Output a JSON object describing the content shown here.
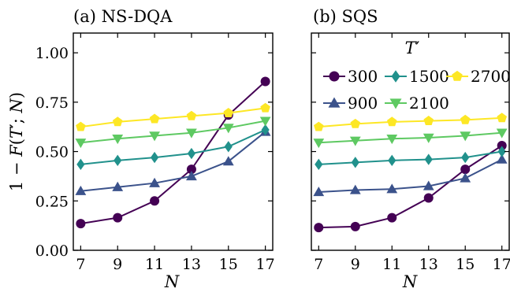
{
  "figure": {
    "shared_ylabel_parts": {
      "a": "1 − ",
      "b": "F",
      "c": "(",
      "d": "T",
      "e": "′; ",
      "f": "N",
      "g": ")"
    },
    "legend_title": {
      "main": "T",
      "prime": "′"
    }
  },
  "chart_data": [
    {
      "type": "line",
      "title": "(a) NS-DQA",
      "xlabel": "N",
      "ylabel": "1 − F(T′; N)",
      "x": [
        7,
        9,
        11,
        13,
        15,
        17
      ],
      "xticks": [
        "7",
        "9",
        "11",
        "13",
        "15",
        "17"
      ],
      "xlim": [
        6.6,
        17.4
      ],
      "ylim": [
        0.0,
        1.1
      ],
      "yticks": [
        "0.00",
        "0.25",
        "0.50",
        "0.75",
        "1.00"
      ],
      "grid": false,
      "series": [
        {
          "name": "300",
          "color": "#440154",
          "marker": "circle",
          "values": [
            0.135,
            0.165,
            0.25,
            0.41,
            0.685,
            0.855
          ]
        },
        {
          "name": "900",
          "color": "#3b528b",
          "marker": "triangle-up",
          "values": [
            0.3,
            0.32,
            0.34,
            0.375,
            0.45,
            0.6
          ]
        },
        {
          "name": "1500",
          "color": "#21918c",
          "marker": "diamond",
          "values": [
            0.435,
            0.455,
            0.47,
            0.49,
            0.525,
            0.61
          ]
        },
        {
          "name": "2100",
          "color": "#5ec962",
          "marker": "triangle-down",
          "values": [
            0.545,
            0.565,
            0.58,
            0.595,
            0.62,
            0.655
          ]
        },
        {
          "name": "2700",
          "color": "#fde725",
          "marker": "pentagon",
          "values": [
            0.625,
            0.65,
            0.665,
            0.68,
            0.695,
            0.72
          ]
        }
      ]
    },
    {
      "type": "line",
      "title": "(b) SQS",
      "xlabel": "N",
      "x": [
        7,
        9,
        11,
        13,
        15,
        17
      ],
      "xticks": [
        "7",
        "9",
        "11",
        "13",
        "15",
        "17"
      ],
      "xlim": [
        6.6,
        17.4
      ],
      "ylim": [
        0.0,
        1.1
      ],
      "grid": false,
      "legend": {
        "title": "T′",
        "placement": "top",
        "columns": 3
      },
      "series": [
        {
          "name": "300",
          "color": "#440154",
          "marker": "circle",
          "values": [
            0.115,
            0.12,
            0.165,
            0.265,
            0.41,
            0.53
          ]
        },
        {
          "name": "900",
          "color": "#3b528b",
          "marker": "triangle-up",
          "values": [
            0.295,
            0.305,
            0.31,
            0.325,
            0.365,
            0.46
          ]
        },
        {
          "name": "1500",
          "color": "#21918c",
          "marker": "diamond",
          "values": [
            0.435,
            0.445,
            0.455,
            0.46,
            0.47,
            0.5
          ]
        },
        {
          "name": "2100",
          "color": "#5ec962",
          "marker": "triangle-down",
          "values": [
            0.545,
            0.555,
            0.565,
            0.57,
            0.58,
            0.595
          ]
        },
        {
          "name": "2700",
          "color": "#fde725",
          "marker": "pentagon",
          "values": [
            0.625,
            0.64,
            0.65,
            0.655,
            0.66,
            0.67
          ]
        }
      ]
    }
  ]
}
